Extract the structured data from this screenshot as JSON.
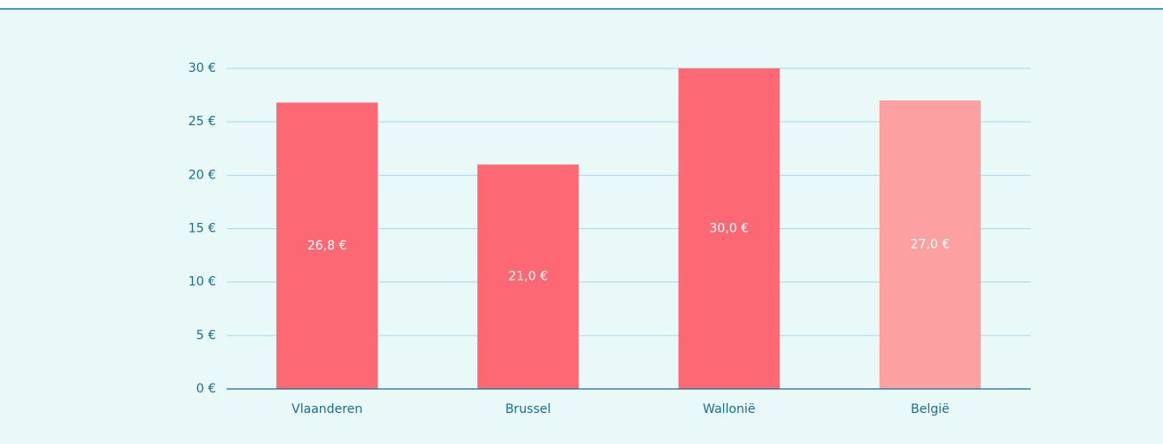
{
  "chart_data": {
    "type": "bar",
    "categories": [
      "Vlaanderen",
      "Brussel",
      "Wallonië",
      "België"
    ],
    "values": [
      26.8,
      21.0,
      30.0,
      27.0
    ],
    "value_labels": [
      "26,8 €",
      "21,0 €",
      "30,0 €",
      "27,0 €"
    ],
    "colors": [
      "#fc6873",
      "#fc6873",
      "#fc6873",
      "#fda0a1"
    ],
    "ylim": [
      0,
      30
    ],
    "yticks": [
      {
        "value": 0,
        "label": "0 €"
      },
      {
        "value": 5,
        "label": "5 €"
      },
      {
        "value": 10,
        "label": "10 €"
      },
      {
        "value": 15,
        "label": "15 €"
      },
      {
        "value": 20,
        "label": "20 €"
      },
      {
        "value": 25,
        "label": "25 €"
      },
      {
        "value": 30,
        "label": "30 €"
      }
    ],
    "grid": true
  }
}
